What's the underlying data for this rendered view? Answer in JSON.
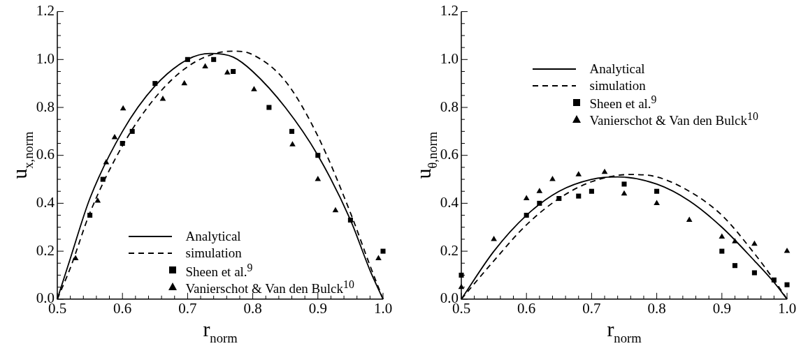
{
  "chart_data": [
    {
      "type": "line",
      "xlabel": "r$_{norm}$",
      "ylabel": "u$_{x,norm}$",
      "xlim": [
        0.5,
        1.0
      ],
      "ylim": [
        0,
        1.2
      ],
      "xticks": [
        {
          "value": 0.5,
          "label": "0.5"
        },
        {
          "value": 0.52,
          "label": null
        },
        {
          "value": 0.54,
          "label": null
        },
        {
          "value": 0.56,
          "label": null
        },
        {
          "value": 0.58,
          "label": null
        },
        {
          "value": 0.6,
          "label": "0.6"
        },
        {
          "value": 0.62,
          "label": null
        },
        {
          "value": 0.64,
          "label": null
        },
        {
          "value": 0.66,
          "label": null
        },
        {
          "value": 0.68,
          "label": null
        },
        {
          "value": 0.7,
          "label": "0.7"
        },
        {
          "value": 0.72,
          "label": null
        },
        {
          "value": 0.74,
          "label": null
        },
        {
          "value": 0.76,
          "label": null
        },
        {
          "value": 0.78,
          "label": null
        },
        {
          "value": 0.8,
          "label": "0.8"
        },
        {
          "value": 0.82,
          "label": null
        },
        {
          "value": 0.84,
          "label": null
        },
        {
          "value": 0.86,
          "label": null
        },
        {
          "value": 0.88,
          "label": null
        },
        {
          "value": 0.9,
          "label": "0.9"
        },
        {
          "value": 0.92,
          "label": null
        },
        {
          "value": 0.94,
          "label": null
        },
        {
          "value": 0.96,
          "label": null
        },
        {
          "value": 0.98,
          "label": null
        },
        {
          "value": 1.0,
          "label": "1.0"
        }
      ],
      "yticks": [
        {
          "value": 0,
          "label": "0.0"
        },
        {
          "value": 0.05,
          "label": null
        },
        {
          "value": 0.1,
          "label": null
        },
        {
          "value": 0.15,
          "label": null
        },
        {
          "value": 0.2,
          "label": "0.2"
        },
        {
          "value": 0.25,
          "label": null
        },
        {
          "value": 0.3,
          "label": null
        },
        {
          "value": 0.35,
          "label": null
        },
        {
          "value": 0.4,
          "label": "0.4"
        },
        {
          "value": 0.45,
          "label": null
        },
        {
          "value": 0.5,
          "label": null
        },
        {
          "value": 0.55,
          "label": null
        },
        {
          "value": 0.6,
          "label": "0.6"
        },
        {
          "value": 0.65,
          "label": null
        },
        {
          "value": 0.7,
          "label": null
        },
        {
          "value": 0.75,
          "label": null
        },
        {
          "value": 0.8,
          "label": "0.8"
        },
        {
          "value": 0.85,
          "label": null
        },
        {
          "value": 0.9,
          "label": null
        },
        {
          "value": 0.95,
          "label": null
        },
        {
          "value": 1.0,
          "label": "1.0"
        },
        {
          "value": 1.05,
          "label": null
        },
        {
          "value": 1.1,
          "label": null
        },
        {
          "value": 1.15,
          "label": null
        },
        {
          "value": 1.2,
          "label": "1.2"
        }
      ],
      "legend": "bottom",
      "series": [
        {
          "name": "Analytical",
          "type": "line",
          "color": "#000000",
          "line_style": "solid",
          "marker": "none",
          "x": [
            0.5,
            0.52,
            0.55,
            0.6,
            0.65,
            0.7,
            0.735,
            0.77,
            0.8,
            0.85,
            0.9,
            0.95,
            0.98,
            1.0
          ],
          "values": [
            0,
            0.17,
            0.42,
            0.7,
            0.89,
            1.0,
            1.025,
            1.01,
            0.95,
            0.8,
            0.6,
            0.33,
            0.12,
            0
          ]
        },
        {
          "name": "simulation",
          "type": "line",
          "color": "#000000",
          "line_style": "dashed",
          "marker": "none",
          "x": [
            0.5,
            0.52,
            0.55,
            0.6,
            0.65,
            0.7,
            0.75,
            0.775,
            0.8,
            0.85,
            0.9,
            0.95,
            0.98,
            1.0
          ],
          "values": [
            0,
            0.13,
            0.36,
            0.64,
            0.84,
            0.97,
            1.03,
            1.035,
            1.02,
            0.91,
            0.68,
            0.36,
            0.14,
            0
          ]
        },
        {
          "name": "Sheen et al.$^{9}$",
          "type": "scatter",
          "color": "#000000",
          "marker": "square",
          "x": [
            0.55,
            0.57,
            0.6,
            0.615,
            0.65,
            0.7,
            0.74,
            0.77,
            0.825,
            0.86,
            0.9,
            0.95,
            1.0
          ],
          "values": [
            0.35,
            0.5,
            0.65,
            0.7,
            0.9,
            1.0,
            1.0,
            0.95,
            0.8,
            0.7,
            0.6,
            0.33,
            0.2
          ]
        },
        {
          "name": "Vanierschot & Van den Bulck$^{10}$",
          "type": "scatter",
          "color": "#000000",
          "marker": "triangle",
          "x": [
            0.528,
            0.562,
            0.575,
            0.588,
            0.601,
            0.662,
            0.695,
            0.727,
            0.761,
            0.802,
            0.861,
            0.9,
            0.927,
            0.993
          ],
          "values": [
            0.17,
            0.41,
            0.57,
            0.675,
            0.795,
            0.835,
            0.9,
            0.97,
            0.945,
            0.875,
            0.645,
            0.5,
            0.37,
            0.17
          ]
        }
      ]
    },
    {
      "type": "line",
      "xlabel": "r$_{norm}$",
      "ylabel": "u$_{θ,norm}$",
      "xlim": [
        0.5,
        1.0
      ],
      "ylim": [
        0,
        1.2
      ],
      "xticks": [
        {
          "value": 0.5,
          "label": "0.5"
        },
        {
          "value": 0.52,
          "label": null
        },
        {
          "value": 0.54,
          "label": null
        },
        {
          "value": 0.56,
          "label": null
        },
        {
          "value": 0.58,
          "label": null
        },
        {
          "value": 0.6,
          "label": "0.6"
        },
        {
          "value": 0.62,
          "label": null
        },
        {
          "value": 0.64,
          "label": null
        },
        {
          "value": 0.66,
          "label": null
        },
        {
          "value": 0.68,
          "label": null
        },
        {
          "value": 0.7,
          "label": "0.7"
        },
        {
          "value": 0.72,
          "label": null
        },
        {
          "value": 0.74,
          "label": null
        },
        {
          "value": 0.76,
          "label": null
        },
        {
          "value": 0.78,
          "label": null
        },
        {
          "value": 0.8,
          "label": "0.8"
        },
        {
          "value": 0.82,
          "label": null
        },
        {
          "value": 0.84,
          "label": null
        },
        {
          "value": 0.86,
          "label": null
        },
        {
          "value": 0.88,
          "label": null
        },
        {
          "value": 0.9,
          "label": "0.9"
        },
        {
          "value": 0.92,
          "label": null
        },
        {
          "value": 0.94,
          "label": null
        },
        {
          "value": 0.96,
          "label": null
        },
        {
          "value": 0.98,
          "label": null
        },
        {
          "value": 1.0,
          "label": "1.0"
        }
      ],
      "yticks": [
        {
          "value": 0,
          "label": "0.0"
        },
        {
          "value": 0.05,
          "label": null
        },
        {
          "value": 0.1,
          "label": null
        },
        {
          "value": 0.15,
          "label": null
        },
        {
          "value": 0.2,
          "label": "0.2"
        },
        {
          "value": 0.25,
          "label": null
        },
        {
          "value": 0.3,
          "label": null
        },
        {
          "value": 0.35,
          "label": null
        },
        {
          "value": 0.4,
          "label": "0.4"
        },
        {
          "value": 0.45,
          "label": null
        },
        {
          "value": 0.5,
          "label": null
        },
        {
          "value": 0.55,
          "label": null
        },
        {
          "value": 0.6,
          "label": "0.6"
        },
        {
          "value": 0.65,
          "label": null
        },
        {
          "value": 0.7,
          "label": null
        },
        {
          "value": 0.75,
          "label": null
        },
        {
          "value": 0.8,
          "label": "0.8"
        },
        {
          "value": 0.85,
          "label": null
        },
        {
          "value": 0.9,
          "label": null
        },
        {
          "value": 0.95,
          "label": null
        },
        {
          "value": 1.0,
          "label": "1.0"
        },
        {
          "value": 1.05,
          "label": null
        },
        {
          "value": 1.1,
          "label": null
        },
        {
          "value": 1.15,
          "label": null
        },
        {
          "value": 1.2,
          "label": "1.2"
        }
      ],
      "legend": "top",
      "series": [
        {
          "name": "Analytical",
          "type": "line",
          "color": "#000000",
          "line_style": "solid",
          "marker": "none",
          "x": [
            0.5,
            0.55,
            0.6,
            0.65,
            0.7,
            0.74,
            0.8,
            0.85,
            0.9,
            0.95,
            0.98,
            1.0
          ],
          "values": [
            0,
            0.2,
            0.35,
            0.45,
            0.5,
            0.51,
            0.48,
            0.41,
            0.3,
            0.16,
            0.07,
            0
          ]
        },
        {
          "name": "simulation",
          "type": "line",
          "color": "#000000",
          "line_style": "dashed",
          "marker": "none",
          "x": [
            0.5,
            0.55,
            0.6,
            0.65,
            0.7,
            0.76,
            0.8,
            0.85,
            0.9,
            0.95,
            0.98,
            1.0
          ],
          "values": [
            0,
            0.16,
            0.31,
            0.42,
            0.49,
            0.52,
            0.51,
            0.45,
            0.35,
            0.19,
            0.08,
            0
          ]
        },
        {
          "name": "Sheen et al.$^{9}$",
          "type": "scatter",
          "color": "#000000",
          "marker": "square",
          "x": [
            0.5,
            0.6,
            0.62,
            0.65,
            0.68,
            0.7,
            0.75,
            0.8,
            0.9,
            0.92,
            0.95,
            0.98,
            1.0
          ],
          "values": [
            0.1,
            0.35,
            0.4,
            0.42,
            0.43,
            0.45,
            0.48,
            0.45,
            0.2,
            0.14,
            0.11,
            0.08,
            0.06
          ]
        },
        {
          "name": "Vanierschot & Van den Bulck$^{10}$",
          "type": "scatter",
          "color": "#000000",
          "marker": "triangle",
          "x": [
            0.5,
            0.55,
            0.6,
            0.62,
            0.64,
            0.68,
            0.72,
            0.75,
            0.8,
            0.85,
            0.9,
            0.92,
            0.95,
            1.0
          ],
          "values": [
            0.05,
            0.25,
            0.42,
            0.45,
            0.5,
            0.52,
            0.53,
            0.44,
            0.4,
            0.33,
            0.26,
            0.24,
            0.23,
            0.2
          ]
        }
      ]
    }
  ]
}
